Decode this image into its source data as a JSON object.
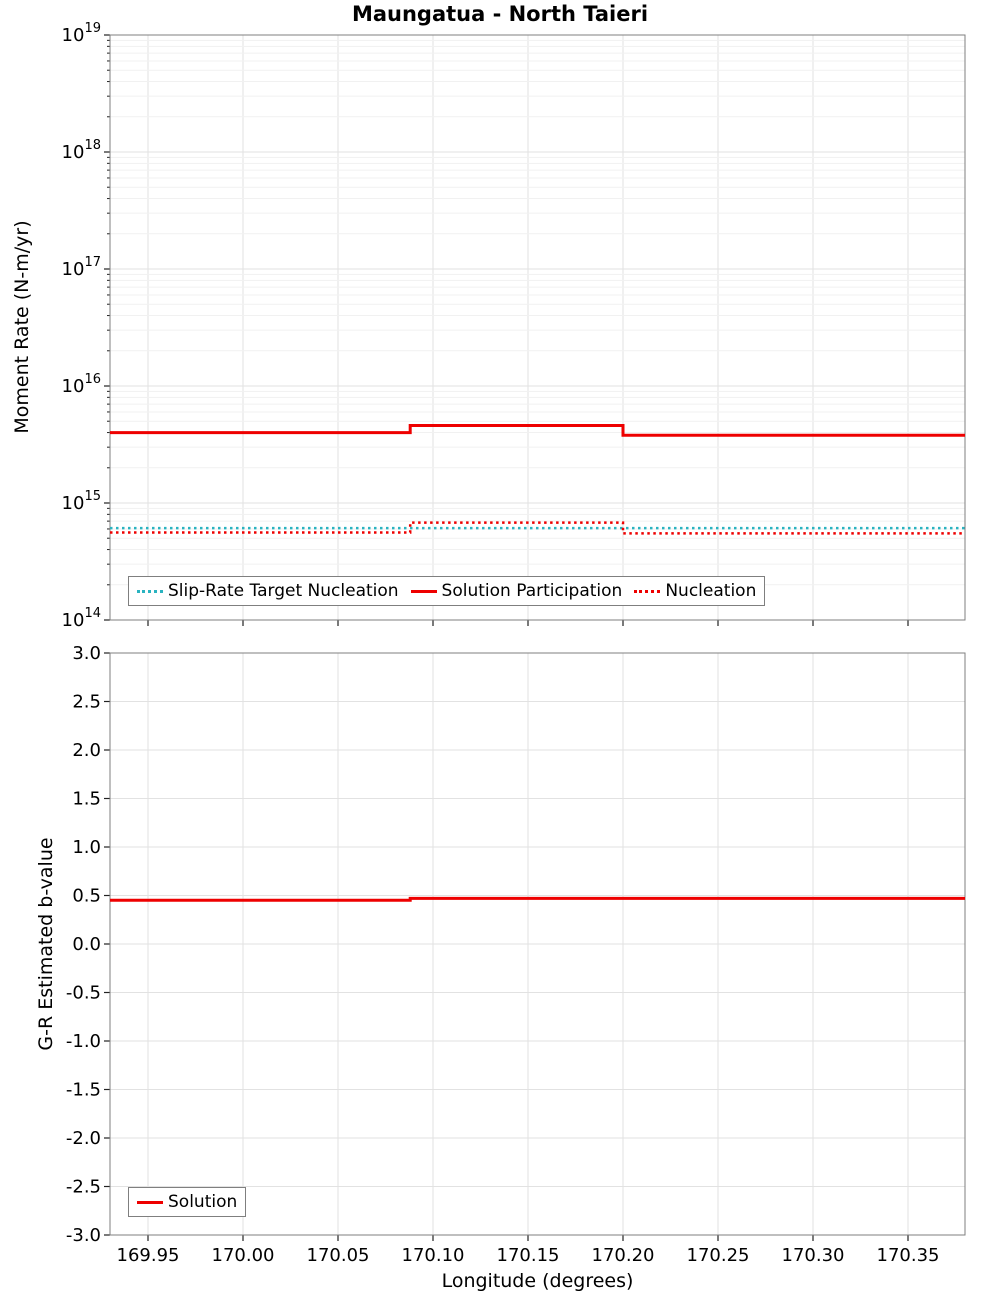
{
  "figure": {
    "title": "Maungatua - North Taieri",
    "xlabel": "Longitude (degrees)"
  },
  "chart_data": [
    {
      "type": "line",
      "name": "moment-rate-panel",
      "title": "Maungatua - North Taieri",
      "xlabel": "",
      "ylabel": "Moment Rate (N-m/yr)",
      "yscale": "log",
      "ylim": [
        100000000000000.0,
        1e+19
      ],
      "xlim": [
        169.93,
        170.38
      ],
      "grid": true,
      "legend_position": "bottom-left-inside",
      "xticks": [
        169.95,
        170.0,
        170.05,
        170.1,
        170.15,
        170.2,
        170.25,
        170.3,
        170.35
      ],
      "xtick_labels": [
        "169.95",
        "170.00",
        "170.05",
        "170.10",
        "170.15",
        "170.20",
        "170.25",
        "170.30",
        "170.35"
      ],
      "series": [
        {
          "name": "Slip-Rate Target Nucleation",
          "color": "#2ab3c0",
          "dash": "dotted",
          "width": 2.5,
          "points": [
            [
              169.93,
              610000000000000.0
            ],
            [
              170.38,
              610000000000000.0
            ]
          ]
        },
        {
          "name": "Solution Participation",
          "color": "#ee0000",
          "dash": "solid",
          "width": 3,
          "points": [
            [
              169.93,
              4000000000000000.0
            ],
            [
              170.088,
              4000000000000000.0
            ],
            [
              170.088,
              4600000000000000.0
            ],
            [
              170.2,
              4600000000000000.0
            ],
            [
              170.2,
              3800000000000000.0
            ],
            [
              170.38,
              3800000000000000.0
            ]
          ]
        },
        {
          "name": "Nucleation",
          "color": "#ee0000",
          "dash": "dotted",
          "width": 2.5,
          "points": [
            [
              169.93,
              560000000000000.0
            ],
            [
              170.088,
              560000000000000.0
            ],
            [
              170.088,
              680000000000000.0
            ],
            [
              170.2,
              680000000000000.0
            ],
            [
              170.2,
              550000000000000.0
            ],
            [
              170.38,
              550000000000000.0
            ]
          ]
        }
      ]
    },
    {
      "type": "line",
      "name": "b-value-panel",
      "title": "",
      "xlabel": "Longitude (degrees)",
      "ylabel": "G-R Estimated b-value",
      "yscale": "linear",
      "ylim": [
        -3.0,
        3.0
      ],
      "xlim": [
        169.93,
        170.38
      ],
      "grid": true,
      "legend_position": "bottom-left-inside",
      "xticks": [
        169.95,
        170.0,
        170.05,
        170.1,
        170.15,
        170.2,
        170.25,
        170.3,
        170.35
      ],
      "xtick_labels": [
        "169.95",
        "170.00",
        "170.05",
        "170.10",
        "170.15",
        "170.20",
        "170.25",
        "170.30",
        "170.35"
      ],
      "yticks": [
        3.0,
        2.5,
        2.0,
        1.5,
        1.0,
        0.5,
        0.0,
        -0.5,
        -1.0,
        -1.5,
        -2.0,
        -2.5,
        -3.0
      ],
      "ytick_labels": [
        "3.0",
        "2.5",
        "2.0",
        "1.5",
        "1.0",
        "0.5",
        "0.0",
        "-0.5",
        "-1.0",
        "-1.5",
        "-2.0",
        "-2.5",
        "-3.0"
      ],
      "series": [
        {
          "name": "Solution",
          "color": "#ee0000",
          "dash": "solid",
          "width": 3,
          "points": [
            [
              169.93,
              0.45
            ],
            [
              170.088,
              0.45
            ],
            [
              170.088,
              0.47
            ],
            [
              170.38,
              0.47
            ]
          ]
        }
      ]
    }
  ]
}
